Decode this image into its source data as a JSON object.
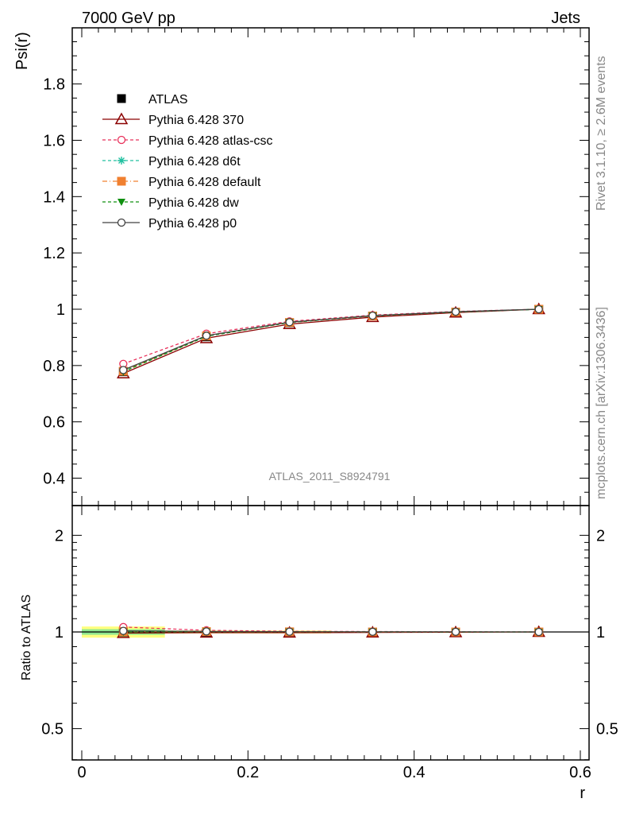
{
  "header": {
    "left": "7000 GeV pp",
    "right": "Jets"
  },
  "side_texts": {
    "rivet": "Rivet 3.1.10, ≥ 2.6M events",
    "mcplots": "mcplots.cern.ch [arXiv:1306.3436]"
  },
  "watermark": "ATLAS_2011_S8924791",
  "chart_data": [
    {
      "type": "line",
      "ylabel": "Psi(r)",
      "xlim": [
        -0.013,
        0.6
      ],
      "ylim": [
        0.33,
        2.0
      ],
      "yticks": [
        0.4,
        0.6,
        0.8,
        1.0,
        1.2,
        1.4,
        1.6,
        1.8
      ],
      "ytick_labels": [
        "0.4",
        "0.6",
        "0.8",
        "1",
        "1.2",
        "1.4",
        "1.6",
        "1.8"
      ],
      "x": [
        0.05,
        0.15,
        0.25,
        0.35,
        0.45,
        0.55
      ],
      "legend_position": "top-left",
      "series": [
        {
          "name": "ATLAS",
          "color": "#000000",
          "marker": "square",
          "values": [
            0.778,
            0.902,
            0.952,
            0.976,
            0.99,
            1.0
          ]
        },
        {
          "name": "Pythia 6.428 370",
          "color": "#8b0000",
          "marker": "triangle-open",
          "dash": "",
          "values": [
            0.772,
            0.897,
            0.947,
            0.972,
            0.988,
            1.0
          ]
        },
        {
          "name": "Pythia 6.428 atlas-csc",
          "color": "#e8305a",
          "marker": "circle-open",
          "dash": "4,3",
          "values": [
            0.806,
            0.913,
            0.957,
            0.979,
            0.992,
            1.0
          ]
        },
        {
          "name": "Pythia 6.428 d6t",
          "color": "#20c0a0",
          "marker": "star",
          "dash": "4,3",
          "values": [
            0.779,
            0.904,
            0.953,
            0.976,
            0.99,
            1.0
          ]
        },
        {
          "name": "Pythia 6.428 default",
          "color": "#f08030",
          "marker": "square",
          "dash": "6,3,1,3",
          "values": [
            0.78,
            0.905,
            0.953,
            0.976,
            0.99,
            1.0
          ]
        },
        {
          "name": "Pythia 6.428 dw",
          "color": "#109010",
          "marker": "triangle-down",
          "dash": "4,3",
          "values": [
            0.778,
            0.904,
            0.953,
            0.977,
            0.99,
            1.0
          ]
        },
        {
          "name": "Pythia 6.428 p0",
          "color": "#404040",
          "marker": "circle-open",
          "dash": "",
          "values": [
            0.784,
            0.906,
            0.954,
            0.977,
            0.991,
            1.0
          ]
        }
      ]
    },
    {
      "type": "line",
      "ylabel": "Ratio to ATLAS",
      "xlabel": "r",
      "log_y": true,
      "ylim": [
        0.4,
        2.3
      ],
      "yticks": [
        0.5,
        1,
        2
      ],
      "ytick_labels": [
        "0.5",
        "1",
        "2"
      ],
      "xticks": [
        0,
        0.2,
        0.4,
        0.6
      ],
      "xtick_labels": [
        "0",
        "0.2",
        "0.4",
        "0.6"
      ],
      "x": [
        0.05,
        0.15,
        0.25,
        0.35,
        0.45,
        0.55
      ],
      "band": {
        "x_ranges": [
          [
            0.0,
            0.1
          ],
          [
            0.1,
            0.3
          ]
        ],
        "yellow_halfwidth": [
          0.04,
          0.01
        ],
        "green_halfwidth": [
          0.02,
          0.005
        ]
      },
      "series": [
        {
          "name": "Pythia 6.428 370",
          "values": [
            0.992,
            0.995,
            0.995,
            0.996,
            0.998,
            1.0
          ]
        },
        {
          "name": "Pythia 6.428 atlas-csc",
          "values": [
            1.036,
            1.012,
            1.005,
            1.003,
            1.002,
            1.0
          ]
        },
        {
          "name": "Pythia 6.428 d6t",
          "values": [
            1.001,
            1.002,
            1.001,
            1.0,
            1.0,
            1.0
          ]
        },
        {
          "name": "Pythia 6.428 default",
          "values": [
            1.003,
            1.003,
            1.001,
            1.0,
            1.0,
            1.0
          ]
        },
        {
          "name": "Pythia 6.428 dw",
          "values": [
            1.0,
            1.002,
            1.001,
            1.001,
            1.0,
            1.0
          ]
        },
        {
          "name": "Pythia 6.428 p0",
          "values": [
            1.008,
            1.004,
            1.002,
            1.001,
            1.001,
            1.0
          ]
        }
      ]
    }
  ]
}
